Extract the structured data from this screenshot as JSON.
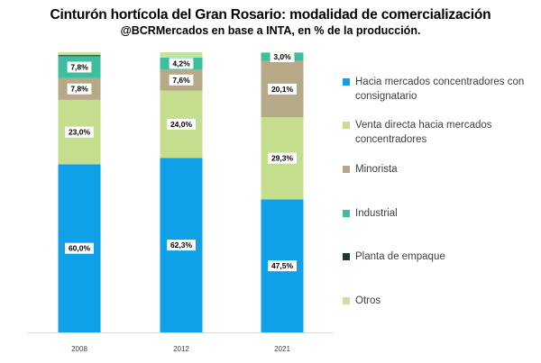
{
  "chart_data": {
    "type": "bar",
    "stacked": true,
    "title": "Cinturón hortícola del Gran Rosario: modalidad de comercialización",
    "subtitle": "@BCRMercados en base a INTA, en % de la producción.",
    "categories": [
      "2008",
      "2012",
      "2021"
    ],
    "ylim": [
      0,
      100
    ],
    "legend_position": "right",
    "series": [
      {
        "name": "Hacia mercados concentradores con consignatario",
        "color": "#0EA1E8",
        "values": [
          60.0,
          62.3,
          47.5
        ],
        "labels": [
          "60,0%",
          "62,3%",
          "47,5%"
        ]
      },
      {
        "name": "Venta directa hacia mercados concentradores",
        "color": "#C4DE8E",
        "values": [
          23.0,
          24.0,
          29.3
        ],
        "labels": [
          "23,0%",
          "24,0%",
          "29,3%"
        ]
      },
      {
        "name": "Minorista",
        "color": "#B5A988",
        "values": [
          7.8,
          7.6,
          20.1
        ],
        "labels": [
          "7,8%",
          "7,6%",
          "20,1%"
        ]
      },
      {
        "name": "Industrial",
        "color": "#3DBEA0",
        "values": [
          7.8,
          4.2,
          3.0
        ],
        "labels": [
          "7,8%",
          "4,2%",
          "3,0%"
        ]
      },
      {
        "name": "Planta de empaque",
        "color": "#1C3B30",
        "values": [
          0.4,
          0,
          0
        ],
        "labels": [
          "",
          "",
          ""
        ]
      },
      {
        "name": "Otros",
        "color": "#C6E2A0",
        "values": [
          1.0,
          1.9,
          0.1
        ],
        "labels": [
          "",
          "",
          ""
        ]
      }
    ]
  }
}
